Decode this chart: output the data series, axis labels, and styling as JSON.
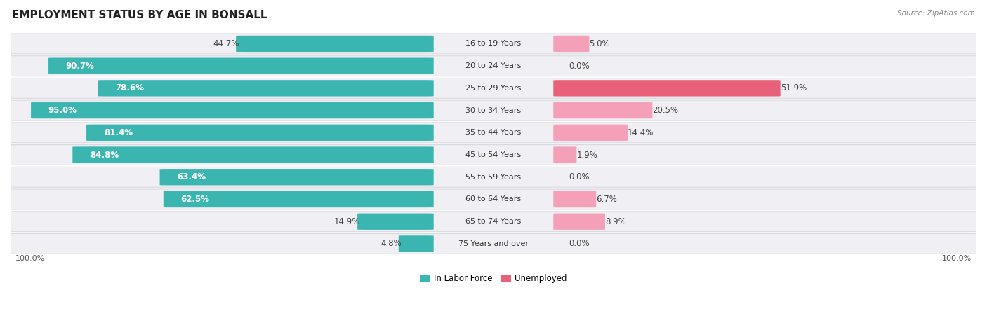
{
  "title": "EMPLOYMENT STATUS BY AGE IN BONSALL",
  "source": "Source: ZipAtlas.com",
  "categories": [
    "16 to 19 Years",
    "20 to 24 Years",
    "25 to 29 Years",
    "30 to 34 Years",
    "35 to 44 Years",
    "45 to 54 Years",
    "55 to 59 Years",
    "60 to 64 Years",
    "65 to 74 Years",
    "75 Years and over"
  ],
  "labor_force": [
    44.7,
    90.7,
    78.6,
    95.0,
    81.4,
    84.8,
    63.4,
    62.5,
    14.9,
    4.8
  ],
  "unemployed": [
    5.0,
    0.0,
    51.9,
    20.5,
    14.4,
    1.9,
    0.0,
    6.7,
    8.9,
    0.0
  ],
  "labor_force_color": "#3ab5b0",
  "unemployed_color_strong": "#e8607a",
  "unemployed_color_light": "#f4a0b8",
  "row_bg_color": "#f0f0f4",
  "row_border_color": "#d8d8e0",
  "title_fontsize": 11,
  "label_fontsize": 8.5,
  "source_fontsize": 7.5,
  "tick_fontsize": 8,
  "legend_labor": "In Labor Force",
  "legend_unemployed": "Unemployed",
  "lf_white_threshold": 50.0,
  "ue_dark_color": "#555555"
}
